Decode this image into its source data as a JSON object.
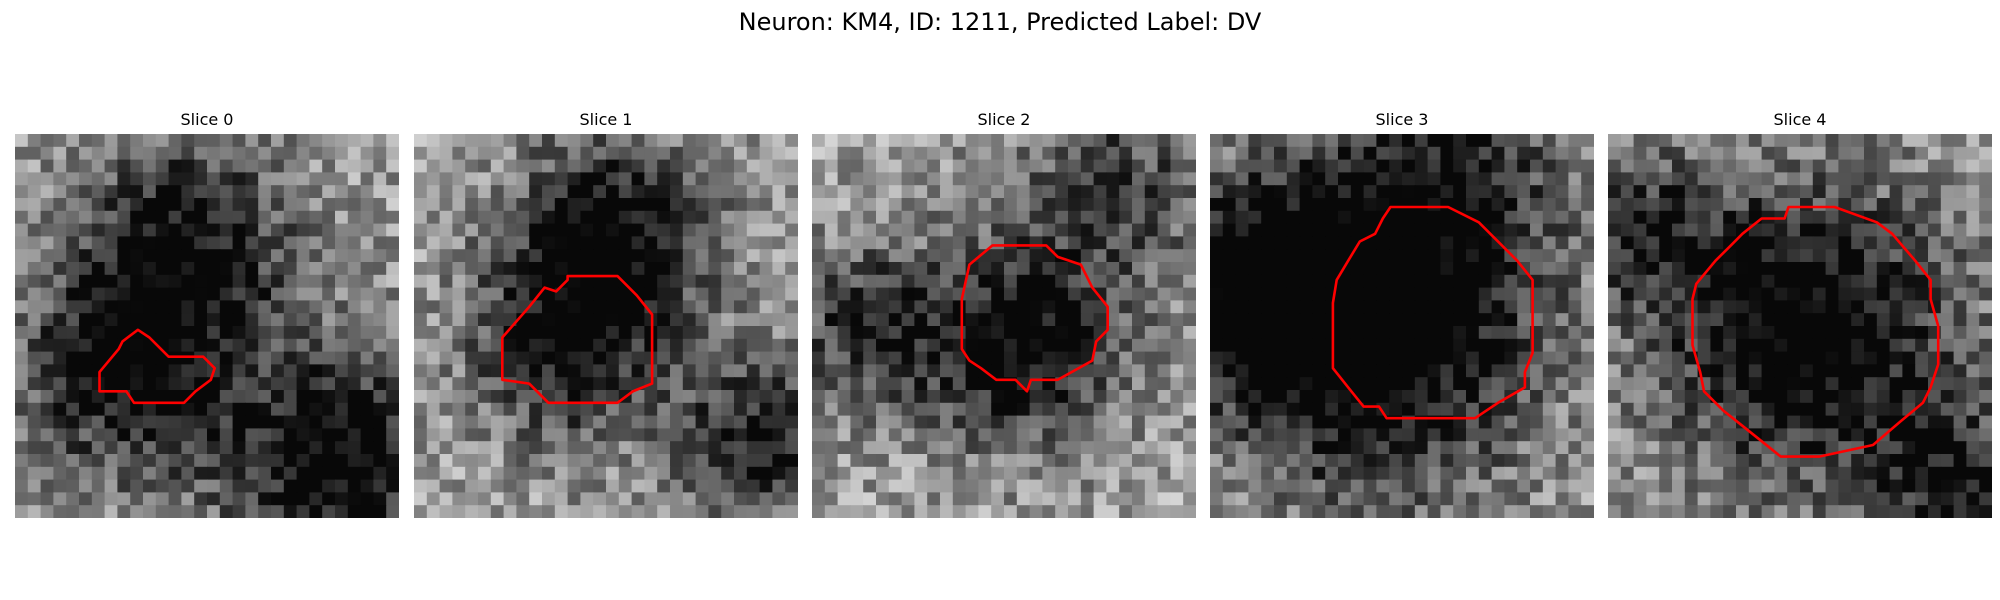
{
  "figure": {
    "title": "Neuron: KM4, ID: 1211, Predicted Label: DV"
  },
  "panels": [
    {
      "title": "Slice 0",
      "roi_color": "#ff0000",
      "seed": 11,
      "dark_blobs": [
        [
          0.45,
          0.28,
          0.2,
          0.55
        ],
        [
          0.3,
          0.62,
          0.2,
          0.6
        ],
        [
          0.85,
          0.85,
          0.2,
          0.7
        ]
      ],
      "roi_outline": [
        [
          0.27,
          0.56
        ],
        [
          0.28,
          0.54
        ],
        [
          0.32,
          0.51
        ],
        [
          0.35,
          0.53
        ],
        [
          0.37,
          0.55
        ],
        [
          0.4,
          0.58
        ],
        [
          0.49,
          0.58
        ],
        [
          0.52,
          0.61
        ],
        [
          0.51,
          0.64
        ],
        [
          0.47,
          0.67
        ],
        [
          0.44,
          0.7
        ],
        [
          0.31,
          0.7
        ],
        [
          0.29,
          0.67
        ],
        [
          0.22,
          0.67
        ],
        [
          0.22,
          0.62
        ]
      ]
    },
    {
      "title": "Slice 1",
      "roi_color": "#ff0000",
      "seed": 23,
      "dark_blobs": [
        [
          0.52,
          0.25,
          0.18,
          0.6
        ],
        [
          0.4,
          0.55,
          0.18,
          0.55
        ],
        [
          0.9,
          0.8,
          0.15,
          0.55
        ]
      ],
      "roi_outline": [
        [
          0.3,
          0.45
        ],
        [
          0.34,
          0.4
        ],
        [
          0.37,
          0.41
        ],
        [
          0.4,
          0.38
        ],
        [
          0.4,
          0.37
        ],
        [
          0.53,
          0.37
        ],
        [
          0.58,
          0.42
        ],
        [
          0.62,
          0.47
        ],
        [
          0.62,
          0.65
        ],
        [
          0.57,
          0.67
        ],
        [
          0.53,
          0.7
        ],
        [
          0.35,
          0.7
        ],
        [
          0.3,
          0.65
        ],
        [
          0.23,
          0.64
        ],
        [
          0.23,
          0.53
        ]
      ]
    },
    {
      "title": "Slice 2",
      "roi_color": "#ff0000",
      "seed": 37,
      "dark_blobs": [
        [
          0.55,
          0.55,
          0.18,
          0.65
        ],
        [
          0.15,
          0.5,
          0.15,
          0.45
        ],
        [
          0.8,
          0.12,
          0.2,
          0.35
        ]
      ],
      "roi_outline": [
        [
          0.39,
          0.43
        ],
        [
          0.41,
          0.34
        ],
        [
          0.47,
          0.29
        ],
        [
          0.61,
          0.29
        ],
        [
          0.64,
          0.32
        ],
        [
          0.7,
          0.34
        ],
        [
          0.73,
          0.4
        ],
        [
          0.77,
          0.45
        ],
        [
          0.77,
          0.51
        ],
        [
          0.74,
          0.54
        ],
        [
          0.73,
          0.59
        ],
        [
          0.64,
          0.64
        ],
        [
          0.57,
          0.64
        ],
        [
          0.56,
          0.67
        ],
        [
          0.53,
          0.64
        ],
        [
          0.48,
          0.64
        ],
        [
          0.44,
          0.61
        ],
        [
          0.41,
          0.59
        ],
        [
          0.39,
          0.56
        ]
      ]
    },
    {
      "title": "Slice 3",
      "roi_color": "#ff0000",
      "seed": 51,
      "dark_blobs": [
        [
          0.42,
          0.55,
          0.28,
          0.75
        ],
        [
          0.1,
          0.4,
          0.18,
          0.6
        ],
        [
          0.6,
          0.1,
          0.25,
          0.45
        ]
      ],
      "roi_outline": [
        [
          0.33,
          0.38
        ],
        [
          0.36,
          0.33
        ],
        [
          0.39,
          0.28
        ],
        [
          0.43,
          0.26
        ],
        [
          0.45,
          0.22
        ],
        [
          0.47,
          0.19
        ],
        [
          0.62,
          0.19
        ],
        [
          0.7,
          0.23
        ],
        [
          0.73,
          0.26
        ],
        [
          0.8,
          0.33
        ],
        [
          0.84,
          0.38
        ],
        [
          0.84,
          0.57
        ],
        [
          0.82,
          0.62
        ],
        [
          0.82,
          0.66
        ],
        [
          0.75,
          0.7
        ],
        [
          0.69,
          0.74
        ],
        [
          0.46,
          0.74
        ],
        [
          0.44,
          0.71
        ],
        [
          0.4,
          0.71
        ],
        [
          0.36,
          0.66
        ],
        [
          0.32,
          0.61
        ],
        [
          0.32,
          0.44
        ]
      ]
    },
    {
      "title": "Slice 4",
      "roi_color": "#ff0000",
      "seed": 67,
      "dark_blobs": [
        [
          0.52,
          0.52,
          0.27,
          0.75
        ],
        [
          0.1,
          0.25,
          0.14,
          0.4
        ],
        [
          0.9,
          0.9,
          0.14,
          0.45
        ]
      ],
      "roi_outline": [
        [
          0.23,
          0.39
        ],
        [
          0.28,
          0.33
        ],
        [
          0.32,
          0.29
        ],
        [
          0.35,
          0.26
        ],
        [
          0.4,
          0.22
        ],
        [
          0.46,
          0.22
        ],
        [
          0.47,
          0.19
        ],
        [
          0.59,
          0.19
        ],
        [
          0.7,
          0.23
        ],
        [
          0.74,
          0.26
        ],
        [
          0.8,
          0.33
        ],
        [
          0.84,
          0.38
        ],
        [
          0.84,
          0.43
        ],
        [
          0.86,
          0.5
        ],
        [
          0.86,
          0.6
        ],
        [
          0.84,
          0.66
        ],
        [
          0.82,
          0.7
        ],
        [
          0.76,
          0.75
        ],
        [
          0.69,
          0.81
        ],
        [
          0.55,
          0.84
        ],
        [
          0.45,
          0.84
        ],
        [
          0.4,
          0.8
        ],
        [
          0.35,
          0.76
        ],
        [
          0.3,
          0.72
        ],
        [
          0.25,
          0.67
        ],
        [
          0.24,
          0.62
        ],
        [
          0.22,
          0.55
        ],
        [
          0.22,
          0.43
        ]
      ]
    }
  ]
}
